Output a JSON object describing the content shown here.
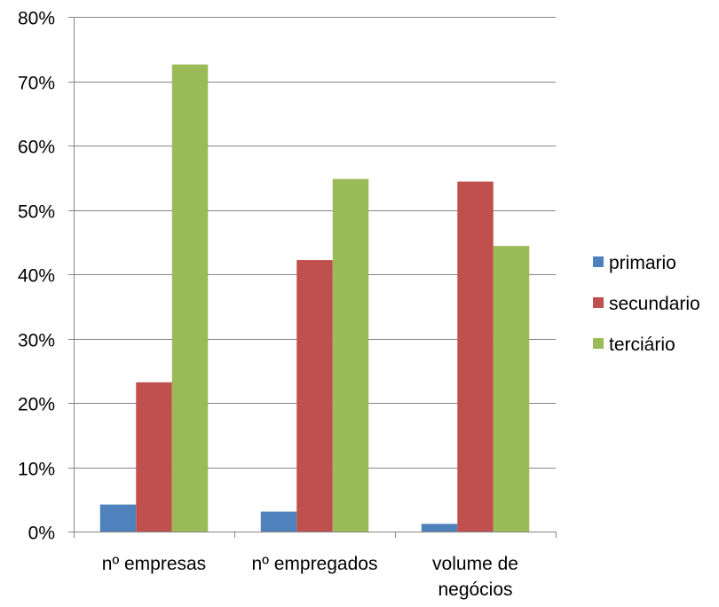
{
  "chart_data": {
    "type": "bar",
    "title": "",
    "xlabel": "",
    "ylabel": "",
    "categories": [
      "nº empresas",
      "nº empregados",
      "volume de negócios"
    ],
    "series": [
      {
        "name": "primario",
        "color": "#4F81BD",
        "values": [
          4.2,
          3.1,
          1.2
        ]
      },
      {
        "name": "secundario",
        "color": "#C0504D",
        "values": [
          23.2,
          42.2,
          54.4
        ]
      },
      {
        "name": "terciário",
        "color": "#9BBB59",
        "values": [
          72.6,
          54.8,
          44.4
        ]
      }
    ],
    "ylim": [
      0,
      80
    ],
    "yticks": [
      0,
      10,
      20,
      30,
      40,
      50,
      60,
      70,
      80
    ],
    "ytick_labels": [
      "0%",
      "10%",
      "20%",
      "30%",
      "40%",
      "50%",
      "60%",
      "70%",
      "80%"
    ],
    "grid": true,
    "legend_position": "right"
  }
}
